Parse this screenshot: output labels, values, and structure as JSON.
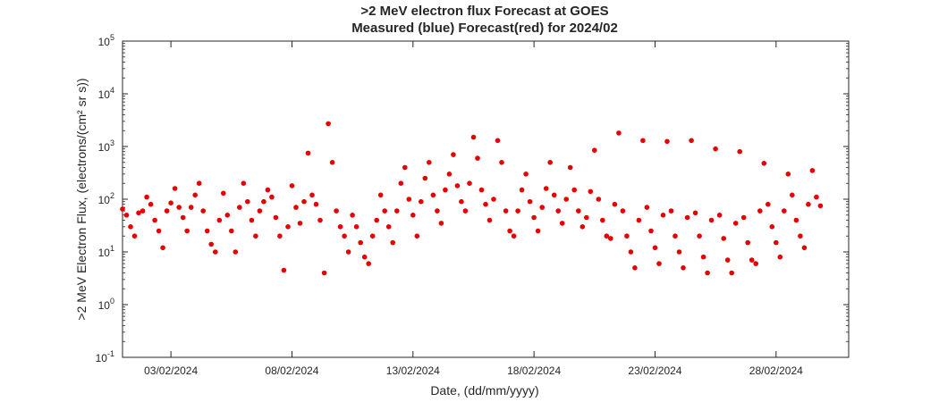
{
  "chart_data": {
    "type": "scatter",
    "title": ">2 MeV electron flux Forecast at GOES",
    "subtitle": "Measured (blue) Forecast(red) for 2024/02",
    "xlabel": "Date, (dd/mm/yyyy)",
    "ylabel": ">2 MeV Electron Flux, (electrons/(cm² sr s))",
    "yscale": "log",
    "ylim": [
      0.1,
      100000
    ],
    "xlim": [
      "2024-02-01",
      "2024-03-02"
    ],
    "ytick_labels": [
      {
        "base": "10",
        "exp": "-1",
        "value": 0.1
      },
      {
        "base": "10",
        "exp": "0",
        "value": 1
      },
      {
        "base": "10",
        "exp": "1",
        "value": 10
      },
      {
        "base": "10",
        "exp": "2",
        "value": 100
      },
      {
        "base": "10",
        "exp": "3",
        "value": 1000
      },
      {
        "base": "10",
        "exp": "4",
        "value": 10000
      },
      {
        "base": "10",
        "exp": "5",
        "value": 100000
      }
    ],
    "xtick_labels": [
      {
        "label": "03/02/2024",
        "date": "2024-02-03"
      },
      {
        "label": "08/02/2024",
        "date": "2024-02-08"
      },
      {
        "label": "13/02/2024",
        "date": "2024-02-13"
      },
      {
        "label": "18/02/2024",
        "date": "2024-02-18"
      },
      {
        "label": "23/02/2024",
        "date": "2024-02-23"
      },
      {
        "label": "28/02/2024",
        "date": "2024-02-28"
      }
    ],
    "grid": false,
    "series": [
      {
        "color": "#e60000",
        "points": [
          [
            "2024-02-01 00:00",
            65
          ],
          [
            "2024-02-01 04:00",
            50
          ],
          [
            "2024-02-01 08:00",
            30
          ],
          [
            "2024-02-01 12:00",
            20
          ],
          [
            "2024-02-01 16:00",
            55
          ],
          [
            "2024-02-01 20:00",
            60
          ],
          [
            "2024-02-02 00:00",
            110
          ],
          [
            "2024-02-02 04:00",
            80
          ],
          [
            "2024-02-02 08:00",
            40
          ],
          [
            "2024-02-02 12:00",
            25
          ],
          [
            "2024-02-02 16:00",
            12
          ],
          [
            "2024-02-02 20:00",
            60
          ],
          [
            "2024-02-03 00:00",
            85
          ],
          [
            "2024-02-03 04:00",
            160
          ],
          [
            "2024-02-03 08:00",
            70
          ],
          [
            "2024-02-03 12:00",
            45
          ],
          [
            "2024-02-03 16:00",
            25
          ],
          [
            "2024-02-03 20:00",
            70
          ],
          [
            "2024-02-04 00:00",
            120
          ],
          [
            "2024-02-04 04:00",
            200
          ],
          [
            "2024-02-04 08:00",
            60
          ],
          [
            "2024-02-04 12:00",
            25
          ],
          [
            "2024-02-04 16:00",
            14
          ],
          [
            "2024-02-04 20:00",
            10
          ],
          [
            "2024-02-05 00:00",
            40
          ],
          [
            "2024-02-05 04:00",
            130
          ],
          [
            "2024-02-05 08:00",
            50
          ],
          [
            "2024-02-05 12:00",
            25
          ],
          [
            "2024-02-05 16:00",
            10
          ],
          [
            "2024-02-05 20:00",
            70
          ],
          [
            "2024-02-06 00:00",
            200
          ],
          [
            "2024-02-06 04:00",
            90
          ],
          [
            "2024-02-06 08:00",
            40
          ],
          [
            "2024-02-06 12:00",
            20
          ],
          [
            "2024-02-06 16:00",
            60
          ],
          [
            "2024-02-06 20:00",
            90
          ],
          [
            "2024-02-07 00:00",
            150
          ],
          [
            "2024-02-07 04:00",
            110
          ],
          [
            "2024-02-07 08:00",
            45
          ],
          [
            "2024-02-07 12:00",
            20
          ],
          [
            "2024-02-07 16:00",
            4.5
          ],
          [
            "2024-02-07 20:00",
            30
          ],
          [
            "2024-02-08 00:00",
            180
          ],
          [
            "2024-02-08 04:00",
            70
          ],
          [
            "2024-02-08 08:00",
            35
          ],
          [
            "2024-02-08 12:00",
            90
          ],
          [
            "2024-02-08 16:00",
            750
          ],
          [
            "2024-02-08 20:00",
            120
          ],
          [
            "2024-02-09 00:00",
            80
          ],
          [
            "2024-02-09 04:00",
            40
          ],
          [
            "2024-02-09 08:00",
            4
          ],
          [
            "2024-02-09 12:00",
            2700
          ],
          [
            "2024-02-09 16:00",
            500
          ],
          [
            "2024-02-09 20:00",
            60
          ],
          [
            "2024-02-10 00:00",
            30
          ],
          [
            "2024-02-10 04:00",
            20
          ],
          [
            "2024-02-10 08:00",
            10
          ],
          [
            "2024-02-10 12:00",
            50
          ],
          [
            "2024-02-10 16:00",
            30
          ],
          [
            "2024-02-10 20:00",
            15
          ],
          [
            "2024-02-11 00:00",
            8
          ],
          [
            "2024-02-11 04:00",
            6
          ],
          [
            "2024-02-11 08:00",
            20
          ],
          [
            "2024-02-11 12:00",
            40
          ],
          [
            "2024-02-11 16:00",
            120
          ],
          [
            "2024-02-11 20:00",
            60
          ],
          [
            "2024-02-12 00:00",
            30
          ],
          [
            "2024-02-12 04:00",
            15
          ],
          [
            "2024-02-12 08:00",
            60
          ],
          [
            "2024-02-12 12:00",
            200
          ],
          [
            "2024-02-12 16:00",
            400
          ],
          [
            "2024-02-12 20:00",
            100
          ],
          [
            "2024-02-13 00:00",
            50
          ],
          [
            "2024-02-13 04:00",
            20
          ],
          [
            "2024-02-13 08:00",
            90
          ],
          [
            "2024-02-13 12:00",
            250
          ],
          [
            "2024-02-13 16:00",
            500
          ],
          [
            "2024-02-13 20:00",
            120
          ],
          [
            "2024-02-14 00:00",
            60
          ],
          [
            "2024-02-14 04:00",
            35
          ],
          [
            "2024-02-14 08:00",
            150
          ],
          [
            "2024-02-14 12:00",
            300
          ],
          [
            "2024-02-14 16:00",
            700
          ],
          [
            "2024-02-14 20:00",
            180
          ],
          [
            "2024-02-15 00:00",
            90
          ],
          [
            "2024-02-15 04:00",
            60
          ],
          [
            "2024-02-15 08:00",
            200
          ],
          [
            "2024-02-15 12:00",
            1500
          ],
          [
            "2024-02-15 16:00",
            600
          ],
          [
            "2024-02-15 20:00",
            150
          ],
          [
            "2024-02-16 00:00",
            80
          ],
          [
            "2024-02-16 04:00",
            40
          ],
          [
            "2024-02-16 08:00",
            100
          ],
          [
            "2024-02-16 12:00",
            1300
          ],
          [
            "2024-02-16 16:00",
            500
          ],
          [
            "2024-02-16 20:00",
            60
          ],
          [
            "2024-02-17 00:00",
            25
          ],
          [
            "2024-02-17 04:00",
            20
          ],
          [
            "2024-02-17 08:00",
            60
          ],
          [
            "2024-02-17 12:00",
            150
          ],
          [
            "2024-02-17 16:00",
            300
          ],
          [
            "2024-02-17 20:00",
            90
          ],
          [
            "2024-02-18 00:00",
            45
          ],
          [
            "2024-02-18 04:00",
            25
          ],
          [
            "2024-02-18 08:00",
            70
          ],
          [
            "2024-02-18 12:00",
            160
          ],
          [
            "2024-02-18 16:00",
            500
          ],
          [
            "2024-02-18 20:00",
            120
          ],
          [
            "2024-02-19 00:00",
            60
          ],
          [
            "2024-02-19 04:00",
            35
          ],
          [
            "2024-02-19 08:00",
            100
          ],
          [
            "2024-02-19 12:00",
            400
          ],
          [
            "2024-02-19 16:00",
            150
          ],
          [
            "2024-02-19 20:00",
            60
          ],
          [
            "2024-02-20 00:00",
            30
          ],
          [
            "2024-02-20 04:00",
            45
          ],
          [
            "2024-02-20 08:00",
            140
          ],
          [
            "2024-02-20 12:00",
            850
          ],
          [
            "2024-02-20 16:00",
            100
          ],
          [
            "2024-02-20 20:00",
            40
          ],
          [
            "2024-02-21 00:00",
            20
          ],
          [
            "2024-02-21 04:00",
            18
          ],
          [
            "2024-02-21 08:00",
            80
          ],
          [
            "2024-02-21 12:00",
            1800
          ],
          [
            "2024-02-21 16:00",
            60
          ],
          [
            "2024-02-21 20:00",
            20
          ],
          [
            "2024-02-22 00:00",
            10
          ],
          [
            "2024-02-22 04:00",
            5
          ],
          [
            "2024-02-22 08:00",
            40
          ],
          [
            "2024-02-22 12:00",
            1300
          ],
          [
            "2024-02-22 16:00",
            70
          ],
          [
            "2024-02-22 20:00",
            25
          ],
          [
            "2024-02-23 00:00",
            12
          ],
          [
            "2024-02-23 04:00",
            6
          ],
          [
            "2024-02-23 08:00",
            50
          ],
          [
            "2024-02-23 12:00",
            1250
          ],
          [
            "2024-02-23 16:00",
            60
          ],
          [
            "2024-02-23 20:00",
            20
          ],
          [
            "2024-02-24 00:00",
            10
          ],
          [
            "2024-02-24 04:00",
            5
          ],
          [
            "2024-02-24 08:00",
            45
          ],
          [
            "2024-02-24 12:00",
            1300
          ],
          [
            "2024-02-24 16:00",
            55
          ],
          [
            "2024-02-24 20:00",
            20
          ],
          [
            "2024-02-25 00:00",
            8
          ],
          [
            "2024-02-25 04:00",
            4
          ],
          [
            "2024-02-25 08:00",
            40
          ],
          [
            "2024-02-25 12:00",
            900
          ],
          [
            "2024-02-25 16:00",
            50
          ],
          [
            "2024-02-25 20:00",
            18
          ],
          [
            "2024-02-26 00:00",
            7
          ],
          [
            "2024-02-26 04:00",
            4
          ],
          [
            "2024-02-26 08:00",
            35
          ],
          [
            "2024-02-26 12:00",
            800
          ],
          [
            "2024-02-26 16:00",
            45
          ],
          [
            "2024-02-26 20:00",
            15
          ],
          [
            "2024-02-27 00:00",
            7
          ],
          [
            "2024-02-27 04:00",
            6
          ],
          [
            "2024-02-27 08:00",
            60
          ],
          [
            "2024-02-27 12:00",
            480
          ],
          [
            "2024-02-27 16:00",
            80
          ],
          [
            "2024-02-27 20:00",
            30
          ],
          [
            "2024-02-28 00:00",
            15
          ],
          [
            "2024-02-28 04:00",
            8
          ],
          [
            "2024-02-28 08:00",
            60
          ],
          [
            "2024-02-28 12:00",
            300
          ],
          [
            "2024-02-28 16:00",
            120
          ],
          [
            "2024-02-28 20:00",
            40
          ],
          [
            "2024-02-29 00:00",
            20
          ],
          [
            "2024-02-29 04:00",
            12
          ],
          [
            "2024-02-29 08:00",
            80
          ],
          [
            "2024-02-29 12:00",
            350
          ],
          [
            "2024-02-29 16:00",
            110
          ],
          [
            "2024-02-29 20:00",
            75
          ]
        ]
      }
    ]
  }
}
